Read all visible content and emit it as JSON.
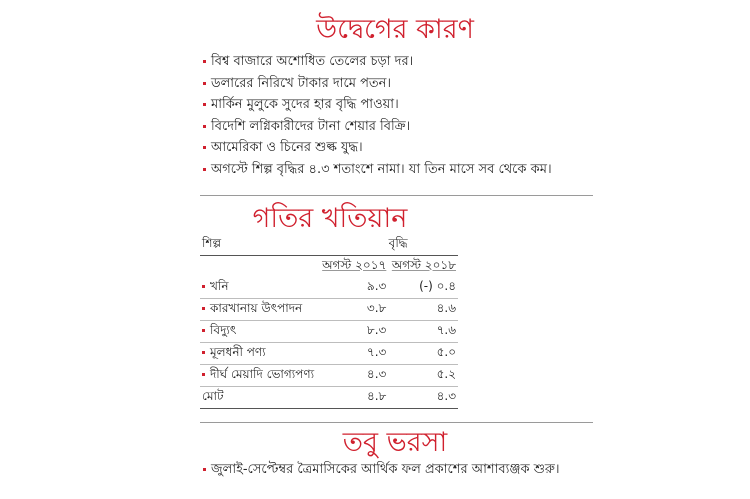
{
  "section1": {
    "title": "উদ্বেগের কারণ",
    "bullets": [
      "বিশ্ব বাজারে অশোধিত তেলের চড়া দর।",
      "ডলারের নিরিখে টাকার দামে পতন।",
      "মার্কিন মুলুকে সুদের হার বৃদ্ধি পাওয়া।",
      "বিদেশি লগ্নিকারীদের টানা শেয়ার বিক্রি।",
      "আমেরিকা ও চিনের শুল্ক যুদ্ধ।",
      "অগস্টে শিল্প বৃদ্ধির ৪.৩ শতাংশে নামা। যা তিন মাসে সব থেকে কম।"
    ]
  },
  "section2": {
    "title": "গতির খতিয়ান",
    "col_sector": "শিল্প",
    "col_growth": "বৃদ্ধি",
    "col_2017": "অগস্ট ২০১৭",
    "col_2018": "অগস্ট ২০১৮",
    "rows": [
      {
        "label": "খনি",
        "v2017": "৯.৩",
        "v2018": "(-) ০.৪"
      },
      {
        "label": "কারখানায় উৎপাদন",
        "v2017": "৩.৮",
        "v2018": "৪.৬"
      },
      {
        "label": "বিদ্যুৎ",
        "v2017": "৮.৩",
        "v2018": "৭.৬"
      },
      {
        "label": "মূলধনী পণ্য",
        "v2017": "৭.৩",
        "v2018": "৫.০"
      },
      {
        "label": "দীর্ঘ মেয়াদি ভোগ্যপণ্য",
        "v2017": "৪.৩",
        "v2018": "৫.২"
      }
    ],
    "total": {
      "label": "মোট",
      "v2017": "৪.৮",
      "v2018": "৪.৩"
    }
  },
  "section3": {
    "title": "তবু ভরসা",
    "bullets": [
      "জুলাই-সেপ্টেম্বর ত্রৈমাসিকের আর্থিক ফল প্রকাশের আশাব্যঞ্জক শুরু।"
    ]
  },
  "colors": {
    "accent": "#d0202e"
  }
}
